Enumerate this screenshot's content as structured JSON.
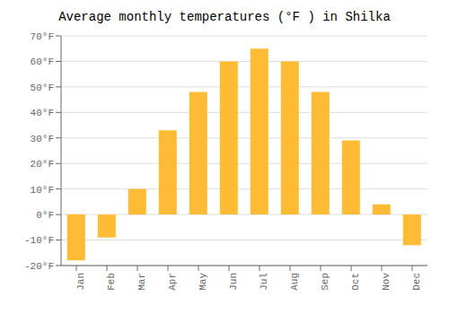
{
  "chart_data": {
    "type": "bar",
    "title": "Average monthly temperatures (°F ) in Shilka",
    "categories": [
      "Jan",
      "Feb",
      "Mar",
      "Apr",
      "May",
      "Jun",
      "Jul",
      "Aug",
      "Sep",
      "Oct",
      "Nov",
      "Dec"
    ],
    "values": [
      -18,
      -9,
      10,
      33,
      48,
      60,
      65,
      60,
      48,
      29,
      4,
      -12
    ],
    "color": "#FFBB33",
    "ylim": [
      -20,
      70
    ],
    "yticks": [
      {
        "value": -20,
        "label": "-20°F"
      },
      {
        "value": -10,
        "label": "-10°F"
      },
      {
        "value": 0,
        "label": "0°F"
      },
      {
        "value": 10,
        "label": "10°F"
      },
      {
        "value": 20,
        "label": "20°F"
      },
      {
        "value": 30,
        "label": "30°F"
      },
      {
        "value": 40,
        "label": "40°F"
      },
      {
        "value": 50,
        "label": "50°F"
      },
      {
        "value": 60,
        "label": "60°F"
      },
      {
        "value": 70,
        "label": "70°F"
      }
    ],
    "grid": true
  }
}
